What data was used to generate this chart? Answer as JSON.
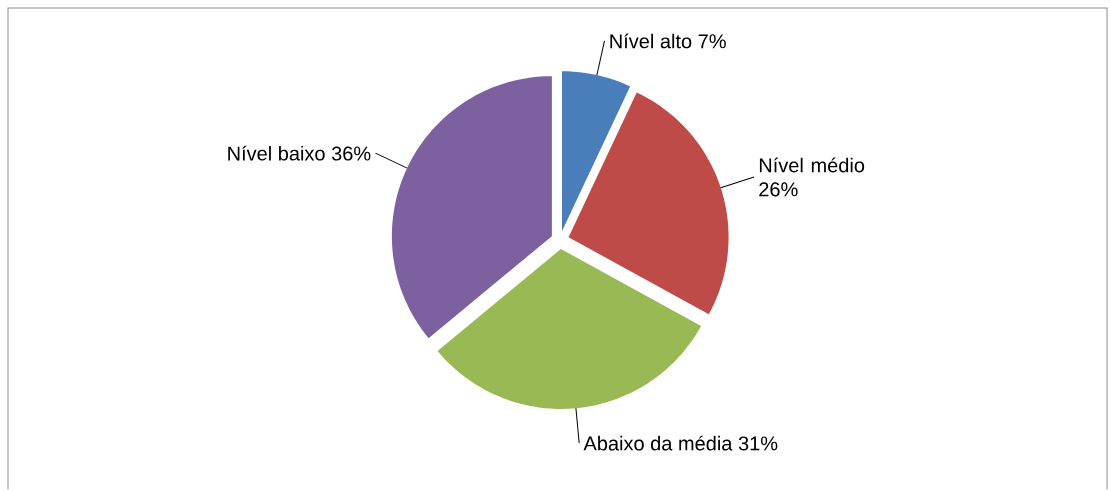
{
  "chart_data": {
    "type": "pie",
    "categories": [
      "Nível alto",
      "Nível médio",
      "Abaixo da média",
      "Nível baixo"
    ],
    "values": [
      7,
      26,
      31,
      36
    ],
    "value_labels": [
      "7%",
      "26%",
      "31%",
      "36%"
    ],
    "colors": [
      "#4a7ebb",
      "#be4b48",
      "#98b954",
      "#7d60a0"
    ]
  }
}
